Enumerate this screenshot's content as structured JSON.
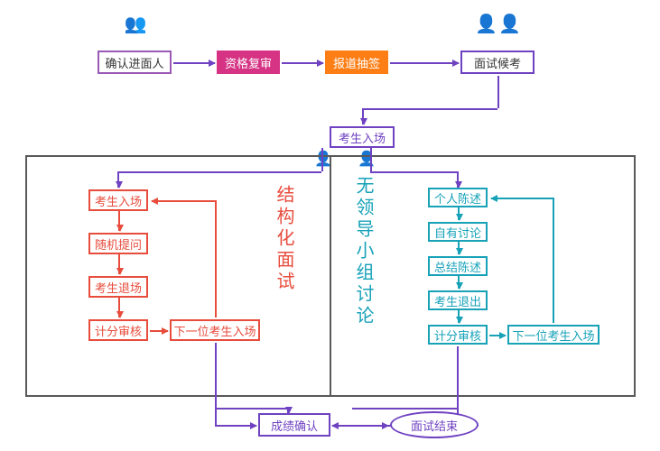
{
  "colors": {
    "purple": "#6f42c1",
    "magenta": "#d63384",
    "orange": "#fd7e14",
    "coral": "#e74c3c",
    "teal": "#17a2b8",
    "dark": "#595959",
    "coralText": "#e74c3c",
    "tealText": "#17a2b8"
  },
  "top": {
    "n1": "确认进面人",
    "n2": "资格复审",
    "n3": "报道抽签",
    "n4": "面试候考",
    "n5": "考生入场"
  },
  "left": {
    "title": "结构化面试",
    "s1": "考生入场",
    "s2": "随机提问",
    "s3": "考生退场",
    "s4": "计分审核",
    "s5": "下一位考生入场"
  },
  "right": {
    "title": "无领导小组讨论",
    "s1": "个人陈述",
    "s2": "自有讨论",
    "s3": "总结陈述",
    "s4": "考生退出",
    "s5": "计分审核",
    "s6": "下一位考生入场"
  },
  "bottom": {
    "n1": "成绩确认",
    "n2": "面试结束"
  },
  "layout": {
    "topRowY": 38,
    "boxTop": 172,
    "boxBottom": 440,
    "boxLeft": 28,
    "boxRight": 704,
    "dividerX": 365
  }
}
